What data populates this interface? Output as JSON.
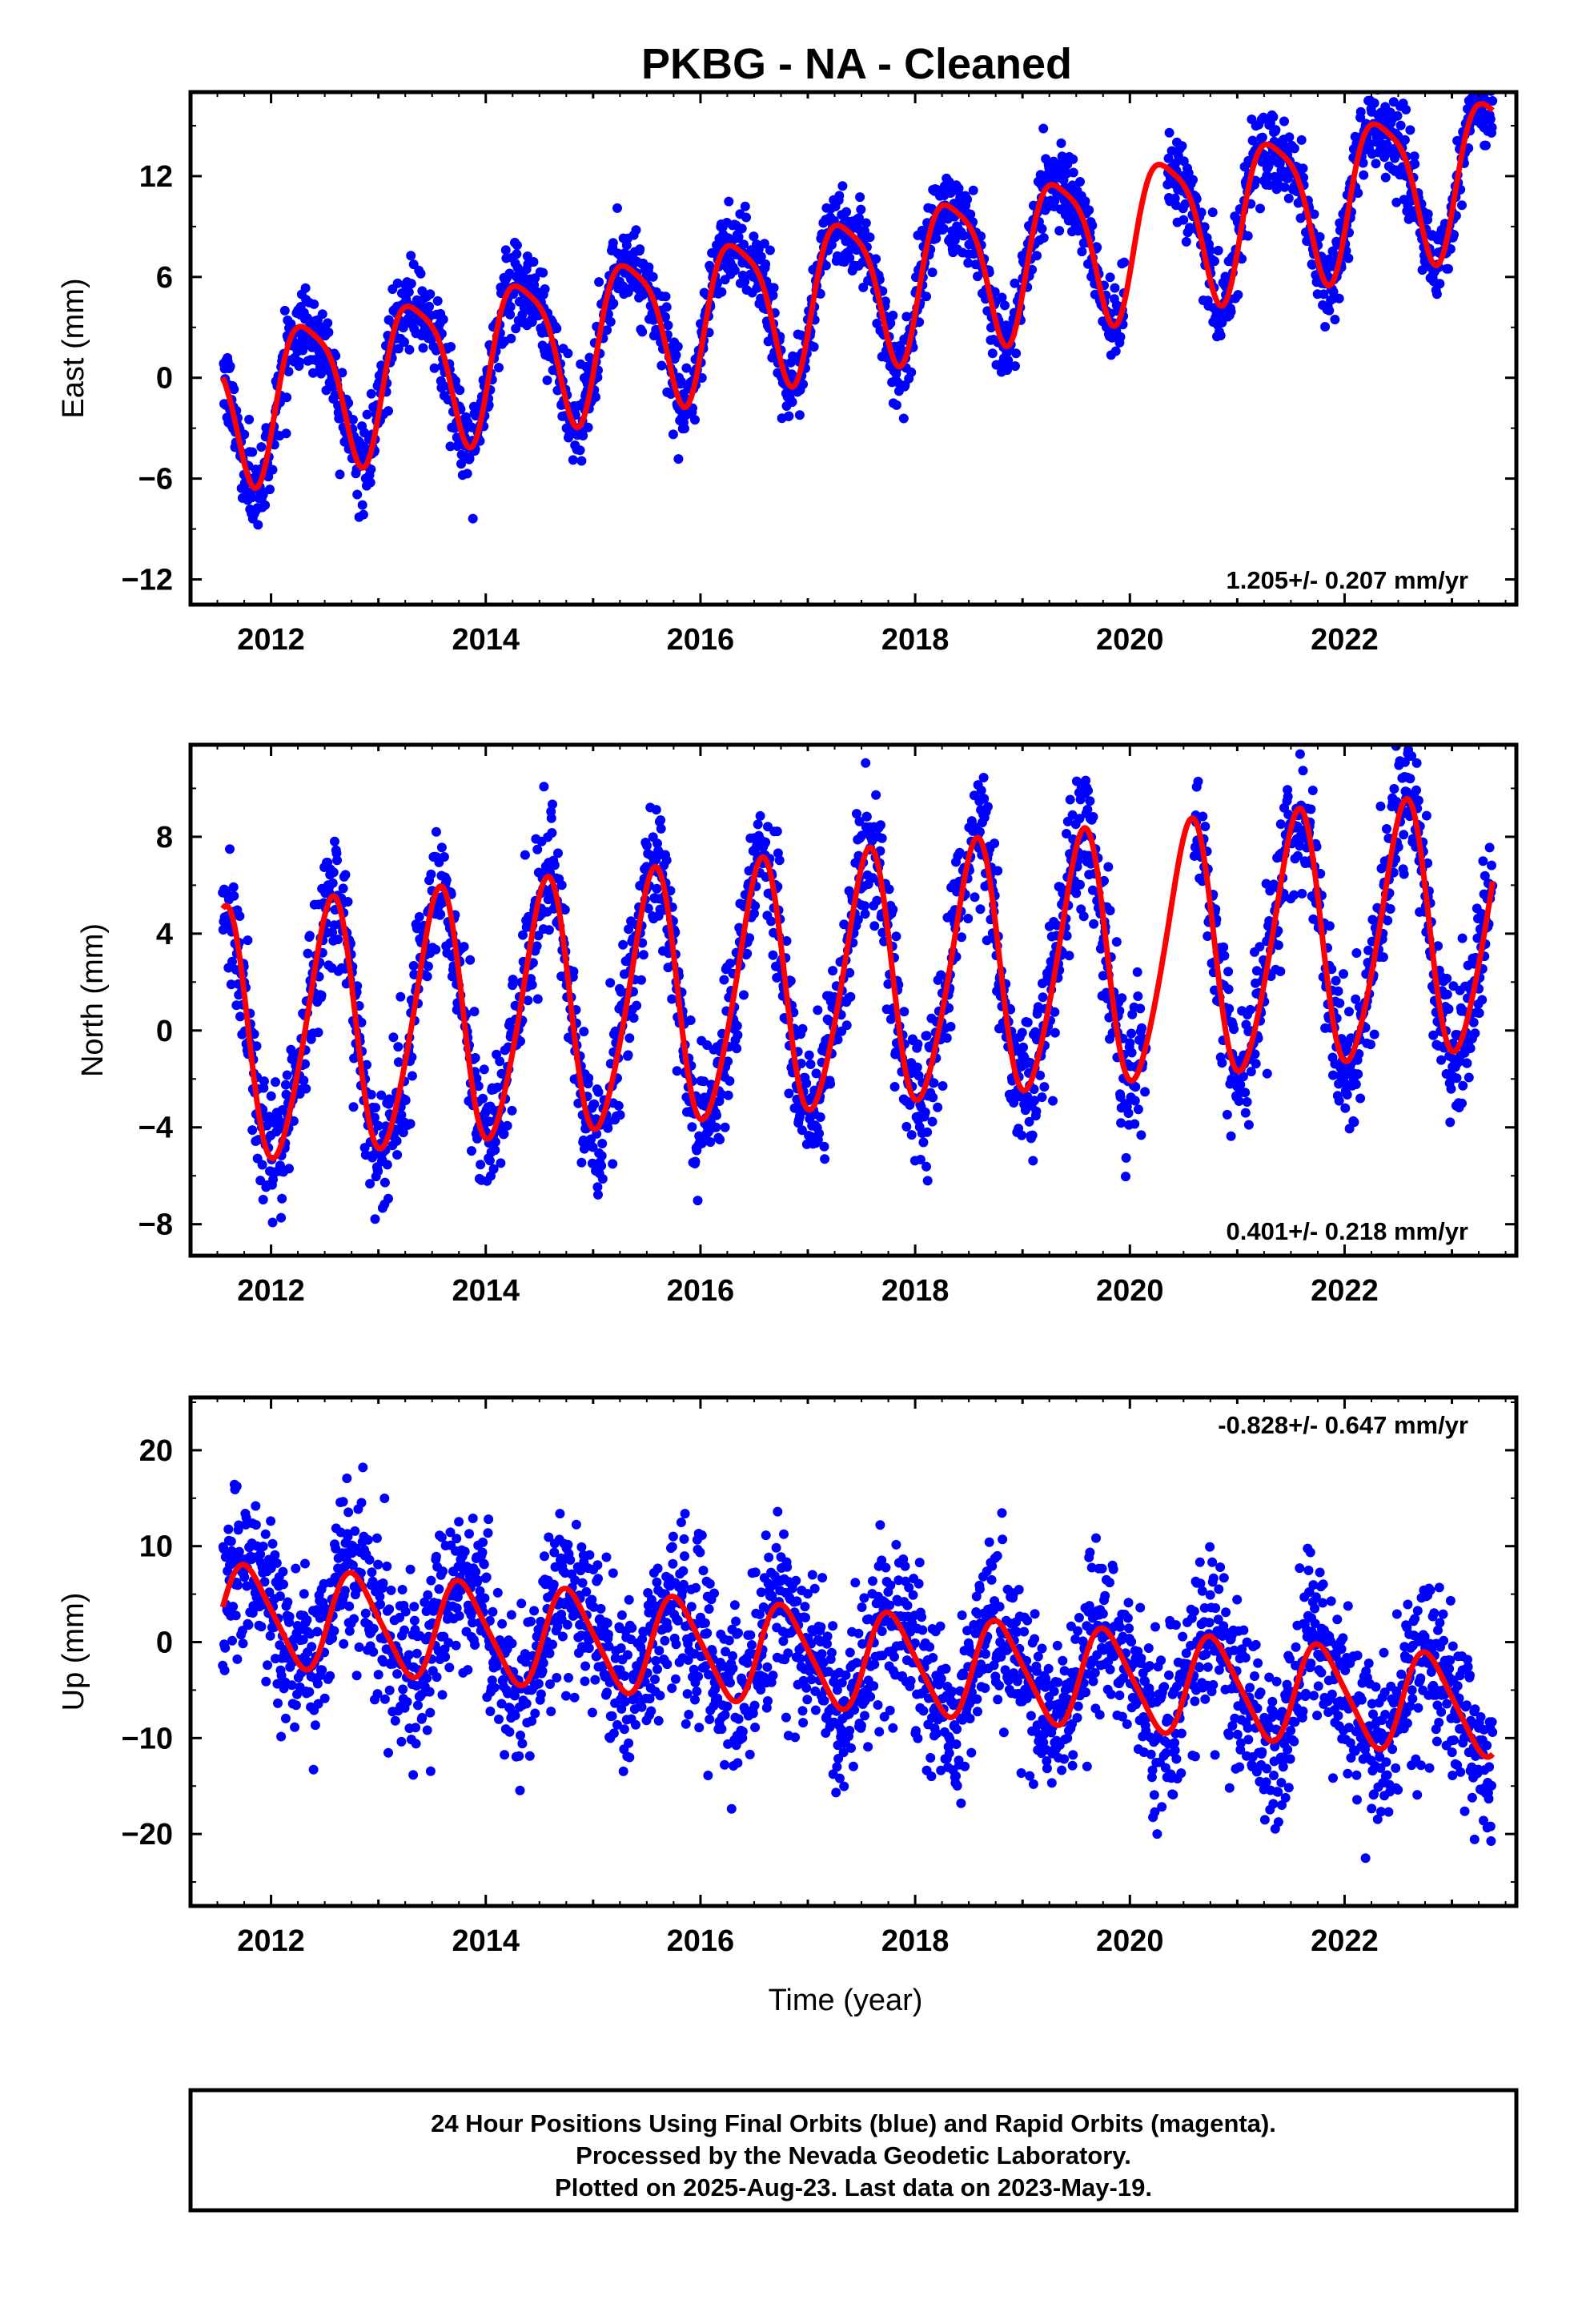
{
  "title": "PKBG  - NA - Cleaned",
  "colors": {
    "final_orbits": "#0000ff",
    "fit_line": "#ff0000",
    "frame": "#000000"
  },
  "chart_data": [
    {
      "id": "east",
      "type": "scatter",
      "ylabel": "East (mm)",
      "xlabel": "",
      "xlim": [
        2011.25,
        2023.6
      ],
      "ylim": [
        -13.5,
        17
      ],
      "yticks": [
        -12,
        -6,
        0,
        6,
        12
      ],
      "xticks": [
        2012,
        2014,
        2016,
        2018,
        2020,
        2022
      ],
      "rate": "1.205+/- 0.207 mm/yr",
      "rate_position": "bottom-right",
      "grid": false,
      "series": [
        {
          "kind": "points",
          "color": "#0000ff",
          "data_range": [
            2011.55,
            2023.38
          ],
          "model": {
            "offset": -1.6,
            "rate": 1.205,
            "amp1": 4.4,
            "phase1": 2.9,
            "amp2": 1.0,
            "phase2": 0.6,
            "scatter": 1.2,
            "gaps": [
              [
                2019.95,
                2020.35
              ]
            ]
          }
        },
        {
          "kind": "fit",
          "color": "#ff0000",
          "x_range": [
            2011.55,
            2023.38
          ]
        }
      ]
    },
    {
      "id": "north",
      "type": "scatter",
      "ylabel": "North (mm)",
      "xlabel": "",
      "xlim": [
        2011.25,
        2023.6
      ],
      "ylim": [
        -9.3,
        11.8
      ],
      "yticks": [
        -8,
        -4,
        0,
        4,
        8
      ],
      "xticks": [
        2012,
        2014,
        2016,
        2018,
        2020,
        2022
      ],
      "rate": "0.401+/- 0.218 mm/yr",
      "rate_position": "bottom-right",
      "grid": false,
      "series": [
        {
          "kind": "points",
          "color": "#0000ff",
          "data_range": [
            2011.55,
            2023.38
          ],
          "model": {
            "offset": -0.4,
            "rate": 0.401,
            "amp1": 5.2,
            "phase1": 1.55,
            "amp2": 0.6,
            "phase2": 0.4,
            "scatter": 1.4,
            "gaps": [
              [
                2020.15,
                2020.6
              ]
            ]
          }
        },
        {
          "kind": "fit",
          "color": "#ff0000",
          "x_range": [
            2011.55,
            2023.38
          ]
        }
      ]
    },
    {
      "id": "up",
      "type": "scatter",
      "ylabel": "Up (mm)",
      "xlabel": "Time (year)",
      "xlim": [
        2011.25,
        2023.6
      ],
      "ylim": [
        -27.5,
        25.5
      ],
      "yticks": [
        -20,
        -10,
        0,
        10,
        20
      ],
      "xticks": [
        2012,
        2014,
        2016,
        2018,
        2020,
        2022
      ],
      "rate": "-0.828+/- 0.647 mm/yr",
      "rate_position": "top-right",
      "grid": false,
      "series": [
        {
          "kind": "points",
          "color": "#0000ff",
          "data_range": [
            2011.55,
            2023.38
          ],
          "model": {
            "offset": 3.0,
            "rate": -0.828,
            "amp1": 5.0,
            "phase1": 0.1,
            "amp2": 0.8,
            "phase2": 0.2,
            "scatter": 4.2,
            "gaps": []
          }
        },
        {
          "kind": "fit",
          "color": "#ff0000",
          "x_range": [
            2011.55,
            2023.38
          ]
        }
      ]
    }
  ],
  "caption": {
    "line1": "24 Hour Positions Using Final Orbits (blue) and Rapid Orbits (magenta).",
    "line2": "Processed by the Nevada Geodetic Laboratory.",
    "line3": "Plotted on 2025-Aug-23. Last data on 2023-May-19."
  }
}
